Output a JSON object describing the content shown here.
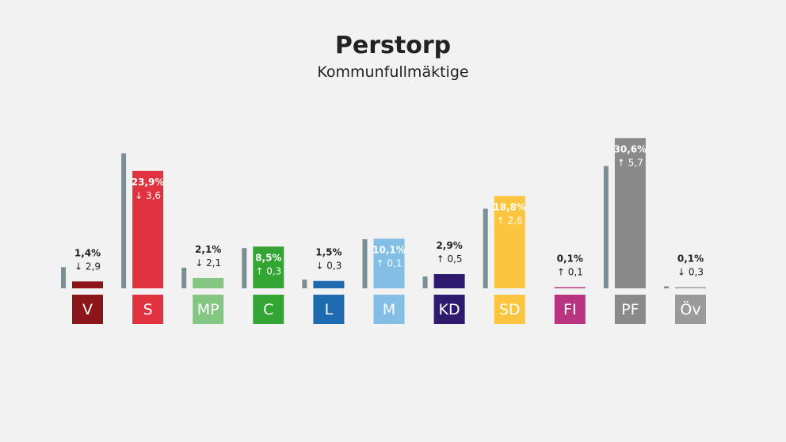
{
  "title": "Perstorp",
  "subtitle": "Kommunfullmäktige",
  "chart_data": {
    "type": "bar",
    "title": "Perstorp",
    "subtitle": "Kommunfullmäktige",
    "categories": [
      "V",
      "S",
      "MP",
      "C",
      "L",
      "M",
      "KD",
      "SD",
      "FI",
      "PF",
      "Öv"
    ],
    "series": [
      {
        "values": [
          1.4,
          23.9,
          2.1,
          8.5,
          1.5,
          10.1,
          2.9,
          18.8,
          0.1,
          30.6,
          0.1
        ]
      },
      {
        "values": [
          4.3,
          27.5,
          4.2,
          8.2,
          1.8,
          10.0,
          2.4,
          16.2,
          0.0,
          24.9,
          0.4
        ]
      }
    ],
    "value_labels": [
      "1,4%",
      "23,9%",
      "2,1%",
      "8,5%",
      "1,5%",
      "10,1%",
      "2,9%",
      "18,8%",
      "0,1%",
      "30,6%",
      "0,1%"
    ],
    "change_labels": [
      "2,9",
      "3,6",
      "2,1",
      "0,3",
      "0,3",
      "0,1",
      "0,5",
      "2,6",
      "0,1",
      "5,7",
      "0,3"
    ],
    "change_direction": [
      "down",
      "down",
      "down",
      "up",
      "down",
      "up",
      "up",
      "up",
      "up",
      "up",
      "down"
    ],
    "colors": [
      "#8c1519",
      "#e0323f",
      "#83c783",
      "#32a532",
      "#1f6bb0",
      "#83bfe5",
      "#2e1a6e",
      "#fbc53f",
      "#b7347f",
      "#8a8a8a",
      "#9a9a9a"
    ],
    "label_colors": [
      "#ffffff",
      "#ffffff",
      "#ffffff",
      "#ffffff",
      "#ffffff",
      "#ffffff",
      "#ffffff",
      "#ffffff",
      "#ffffff",
      "#ffffff",
      "#ffffff"
    ],
    "previous_color": "#7b8e93",
    "ylim": [
      0,
      35
    ],
    "grid": false,
    "legend": "none"
  }
}
